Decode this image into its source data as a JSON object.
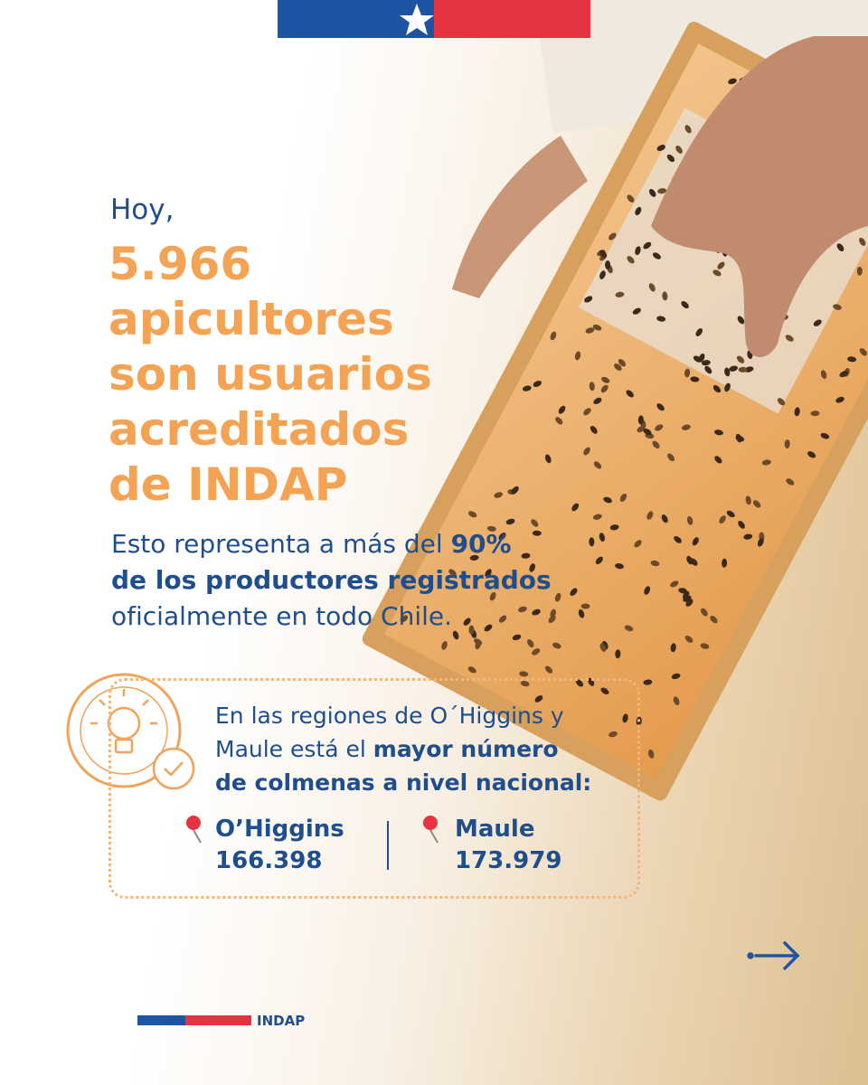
{
  "hero": {
    "intro": "Hoy,",
    "headline": [
      "5.966",
      "apicultores",
      "son usuarios",
      "acreditados",
      "de INDAP"
    ]
  },
  "paragraph": {
    "lines": [
      [
        {
          "text": "Esto representa a más del ",
          "bold": false
        },
        {
          "text": "90%",
          "bold": true
        }
      ],
      [
        {
          "text": "de los productores registrados",
          "bold": true
        }
      ],
      [
        {
          "text": "oficialmente en todo Chile.",
          "bold": false
        }
      ]
    ]
  },
  "info_box": {
    "lines": [
      [
        {
          "text": "En las regiones de O´Higgins y",
          "bold": false
        }
      ],
      [
        {
          "text": "Maule está el ",
          "bold": false
        },
        {
          "text": "mayor número",
          "bold": true
        }
      ],
      [
        {
          "text": "de colmenas a nivel nacional:",
          "bold": true
        }
      ]
    ],
    "regions": [
      {
        "name": "O’Higgins",
        "value": "166.398"
      },
      {
        "name": "Maule",
        "value": "173.979"
      }
    ]
  },
  "footer": {
    "brand": "INDAP"
  }
}
